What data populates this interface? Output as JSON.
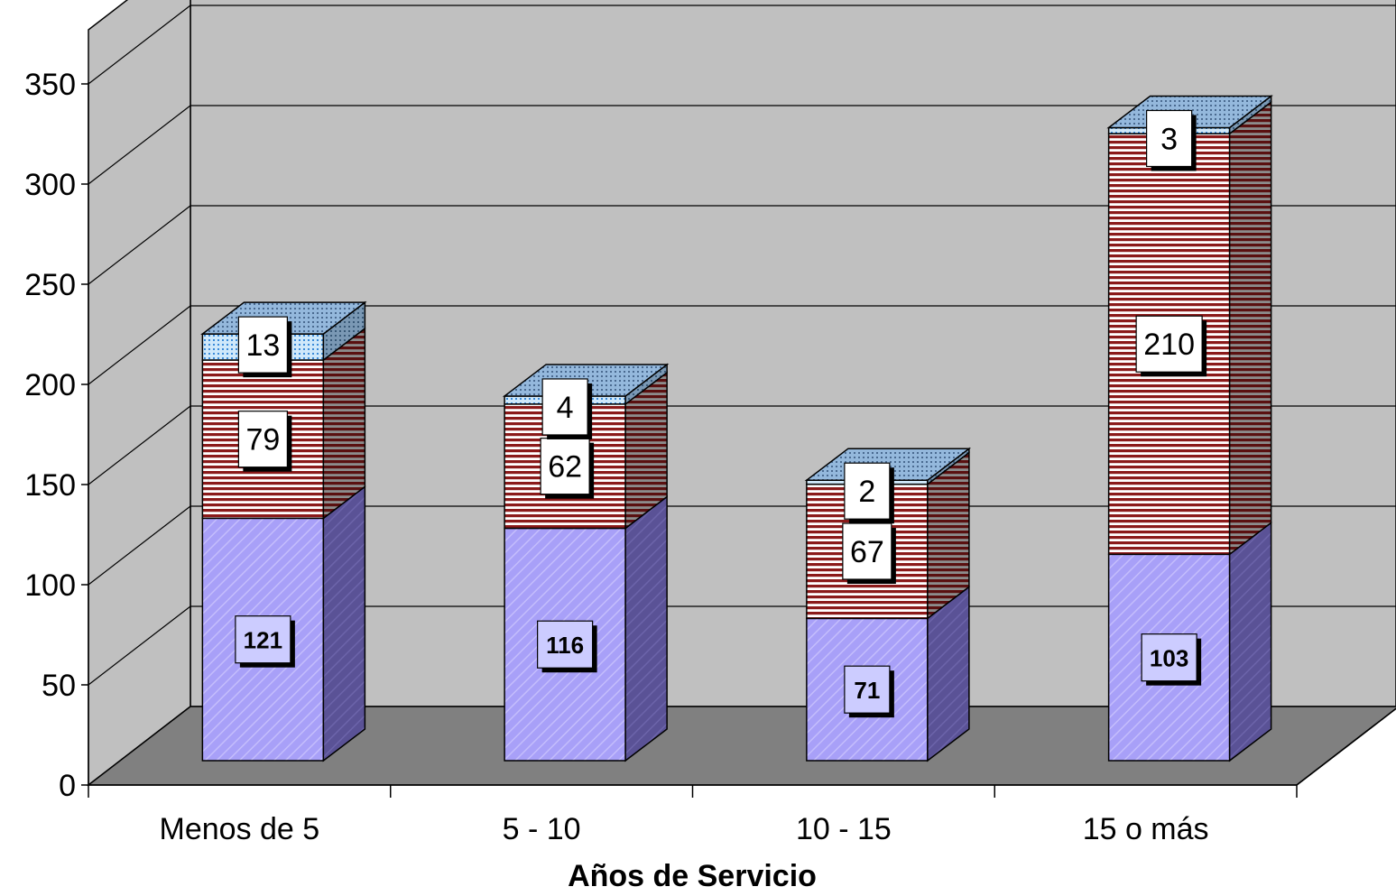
{
  "chart_data": {
    "type": "bar",
    "stacked": true,
    "three_d": true,
    "title": "",
    "xlabel": "Años de Servicio",
    "ylabel": "",
    "ylim": [
      0,
      350
    ],
    "yticks": [
      0,
      50,
      100,
      150,
      200,
      250,
      300,
      350
    ],
    "grid": true,
    "legend": "none",
    "categories": [
      "Menos de 5",
      "5 - 10",
      "10 - 15",
      "15 o más"
    ],
    "series": [
      {
        "values": [
          121,
          116,
          71,
          103
        ],
        "color": "#a8a0f8",
        "pattern": "diagonal",
        "label_style": "bold"
      },
      {
        "values": [
          79,
          62,
          67,
          210
        ],
        "color": "#8b1a1a",
        "pattern": "horizontal-stripes",
        "label_style": "normal"
      },
      {
        "values": [
          13,
          4,
          2,
          3
        ],
        "color": "#cfe6f6",
        "pattern": "dots",
        "label_style": "normal"
      }
    ],
    "colors": {
      "wall": "#c0c0c0",
      "floor": "#808080",
      "gridline": "#000000"
    }
  }
}
